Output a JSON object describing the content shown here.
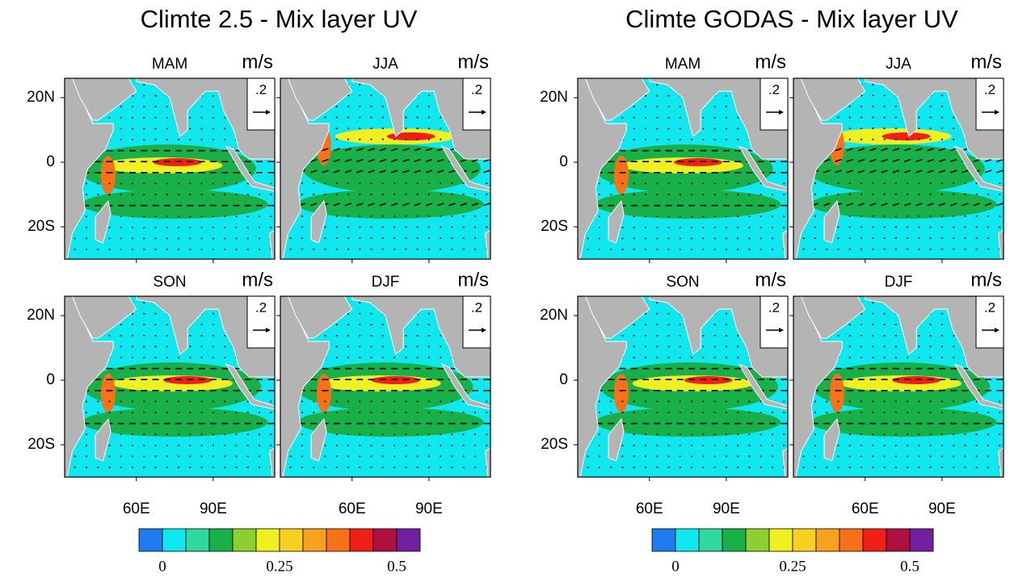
{
  "figures": [
    {
      "title": "Climte 2.5 - Mix layer UV",
      "panels": [
        {
          "season": "MAM",
          "unit": "m/s",
          "ref_vector": ".2"
        },
        {
          "season": "JJA",
          "unit": "m/s",
          "ref_vector": ".2"
        },
        {
          "season": "SON",
          "unit": "m/s",
          "ref_vector": ".2"
        },
        {
          "season": "DJF",
          "unit": "m/s",
          "ref_vector": ".2"
        }
      ],
      "lat_range": [
        -30,
        26
      ],
      "lon_range": [
        32,
        114
      ],
      "lat_ticks": [
        {
          "value": 20,
          "label": "20N"
        },
        0,
        {
          "value": -20,
          "label": "20S"
        }
      ],
      "lon_ticks": [
        {
          "value": 60,
          "label": "60E"
        },
        {
          "value": 90,
          "label": "90E"
        }
      ],
      "colorbar": {
        "range": [
          -0.05,
          0.55
        ],
        "ticks": [
          0,
          0.25,
          0.5
        ],
        "colors": [
          "#1e7cf0",
          "#10e8f0",
          "#30d8a0",
          "#18b048",
          "#8cd030",
          "#f0f020",
          "#f8d020",
          "#f8a020",
          "#f87018",
          "#f02018",
          "#b01040",
          "#7020a0"
        ]
      }
    },
    {
      "title": "Climte GODAS - Mix layer UV",
      "panels": [
        {
          "season": "MAM",
          "unit": "m/s",
          "ref_vector": ".2"
        },
        {
          "season": "JJA",
          "unit": "m/s",
          "ref_vector": ".2"
        },
        {
          "season": "SON",
          "unit": "m/s",
          "ref_vector": ".2"
        },
        {
          "season": "DJF",
          "unit": "m/s",
          "ref_vector": ".2"
        }
      ],
      "lat_range": [
        -30,
        26
      ],
      "lon_range": [
        32,
        114
      ],
      "lat_ticks": [
        {
          "value": 20,
          "label": "20N"
        },
        0,
        {
          "value": -20,
          "label": "20S"
        }
      ],
      "lon_ticks": [
        {
          "value": 60,
          "label": "60E"
        },
        {
          "value": 90,
          "label": "90E"
        }
      ],
      "colorbar": {
        "range": [
          -0.05,
          0.55
        ],
        "ticks": [
          0,
          0.25,
          0.5
        ],
        "colors": [
          "#1e7cf0",
          "#10e8f0",
          "#30d8a0",
          "#18b048",
          "#8cd030",
          "#f0f020",
          "#f8d020",
          "#f8a020",
          "#f87018",
          "#f02018",
          "#b01040",
          "#7020a0"
        ]
      }
    }
  ]
}
